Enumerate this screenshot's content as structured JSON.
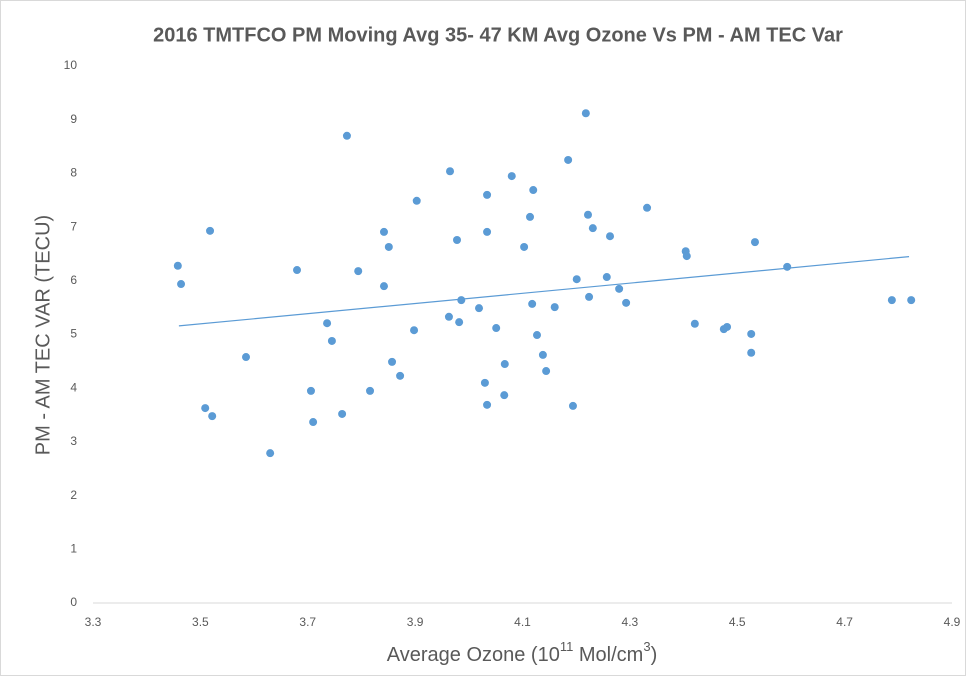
{
  "chart_data": {
    "type": "scatter",
    "title": "2016 TMTFCO PM Moving Avg 35- 47 KM Avg Ozone Vs PM - AM TEC Var",
    "x_label_parts": [
      "Average Ozone (10",
      "11",
      " Mol/cm",
      "3",
      ")"
    ],
    "y_label": "PM - AM TEC VAR (TECU)",
    "color": "#5b9bd5",
    "grid": false,
    "xlim": [
      3.3,
      4.9
    ],
    "xticks": [
      3.3,
      3.5,
      3.7,
      3.9,
      4.1,
      4.3,
      4.5,
      4.7,
      4.9
    ],
    "ylim": [
      0,
      10
    ],
    "yticks": [
      0,
      1,
      2,
      3,
      4,
      5,
      6,
      7,
      8,
      9,
      10
    ],
    "x": [
      3.458,
      3.464,
      3.518,
      3.509,
      3.522,
      3.585,
      3.63,
      3.68,
      3.706,
      3.71,
      3.736,
      3.745,
      3.764,
      3.773,
      3.794,
      3.816,
      3.842,
      3.842,
      3.851,
      3.857,
      3.872,
      3.898,
      3.903,
      3.965,
      3.963,
      3.978,
      3.982,
      3.986,
      4.019,
      4.03,
      4.034,
      4.034,
      4.034,
      4.051,
      4.066,
      4.067,
      4.08,
      4.103,
      4.114,
      4.12,
      4.118,
      4.127,
      4.138,
      4.144,
      4.16,
      4.185,
      4.194,
      4.201,
      4.218,
      4.222,
      4.224,
      4.231,
      4.257,
      4.263,
      4.28,
      4.293,
      4.332,
      4.404,
      4.406,
      4.421,
      4.475,
      4.481,
      4.526,
      4.526,
      4.533,
      4.593,
      4.788,
      4.824
    ],
    "values": [
      6.28,
      5.94,
      6.93,
      3.63,
      3.48,
      4.58,
      2.79,
      6.2,
      3.95,
      3.37,
      5.21,
      4.88,
      3.52,
      8.7,
      6.18,
      3.95,
      6.91,
      5.9,
      6.63,
      4.49,
      4.23,
      5.08,
      7.49,
      8.04,
      5.33,
      6.76,
      5.23,
      5.64,
      5.49,
      4.1,
      3.69,
      7.6,
      6.91,
      5.12,
      3.87,
      4.45,
      7.95,
      6.63,
      7.19,
      7.69,
      5.57,
      4.99,
      4.62,
      4.32,
      5.51,
      8.25,
      3.67,
      6.03,
      9.12,
      7.23,
      5.7,
      6.98,
      6.07,
      6.83,
      5.85,
      5.59,
      7.36,
      6.55,
      6.46,
      5.2,
      5.1,
      5.14,
      5.01,
      4.66,
      6.72,
      6.26,
      5.64,
      5.64
    ],
    "trendline": {
      "x": [
        3.46,
        4.82
      ],
      "y": [
        5.16,
        6.45
      ]
    }
  }
}
